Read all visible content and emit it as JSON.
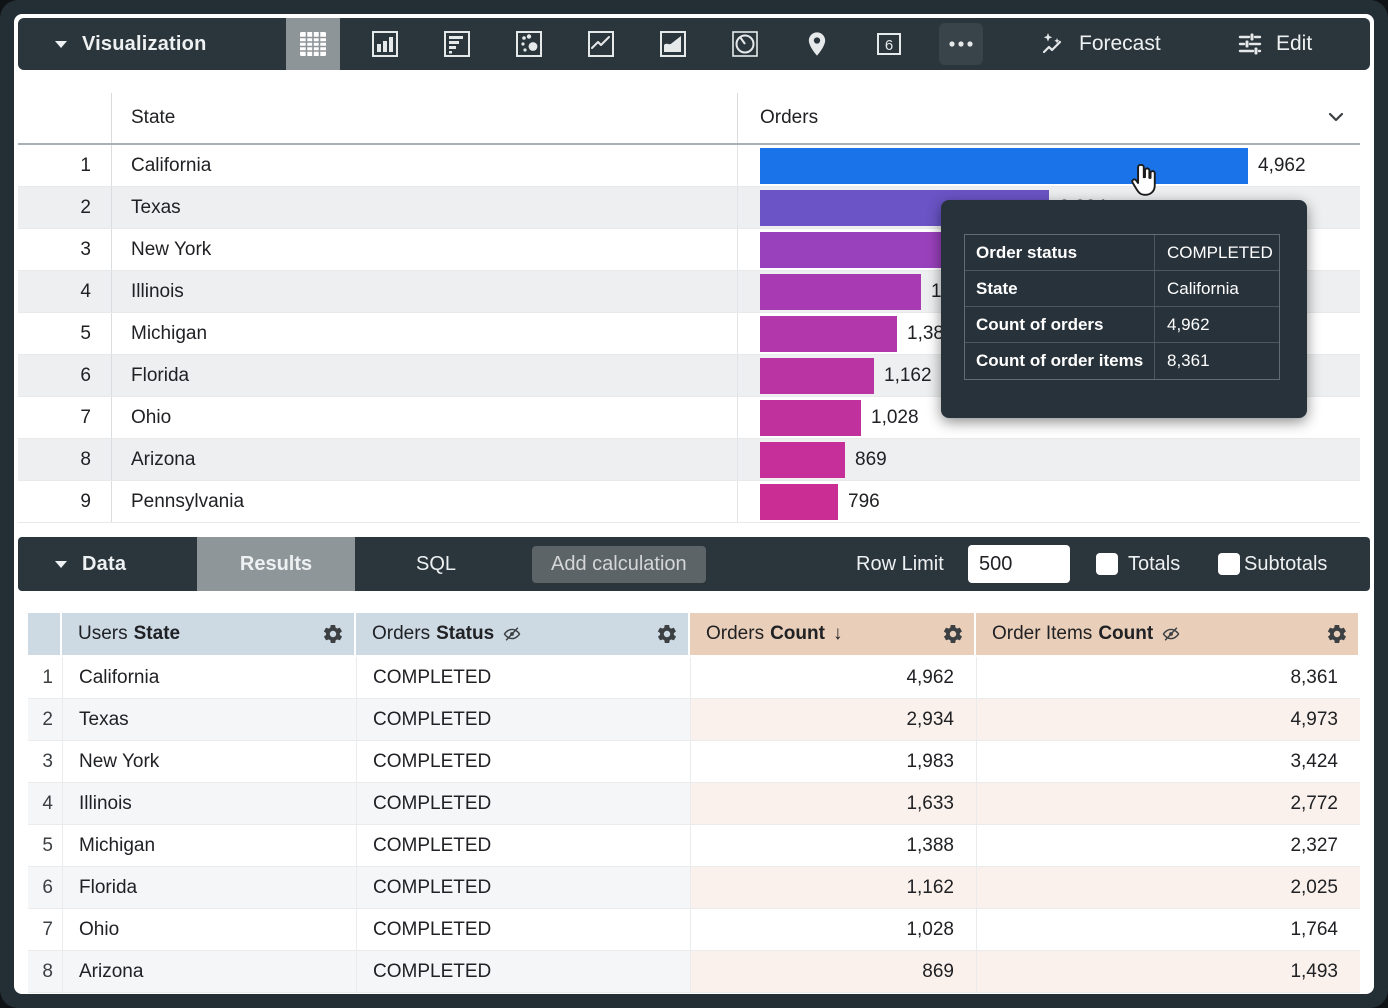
{
  "viz_toolbar": {
    "section_label": "Visualization",
    "selected_chart_type": "table",
    "chart_type_icons": [
      "table",
      "column-chart",
      "bar-chart",
      "scatter-chart",
      "line-chart",
      "area-chart",
      "pie-chart",
      "map",
      "single-value",
      "more"
    ],
    "single_value_glyph": "6",
    "forecast_label": "Forecast",
    "edit_label": "Edit"
  },
  "viz_table": {
    "state_header": "State",
    "orders_header": "Orders",
    "max_value": 4962,
    "rows": [
      {
        "n": "1",
        "state": "California",
        "value": 4962,
        "value_label": "4,962",
        "color": "#1a73e8"
      },
      {
        "n": "2",
        "state": "Texas",
        "value": 2934,
        "value_label": "2,934",
        "color": "#6a54c6"
      },
      {
        "n": "3",
        "state": "New York",
        "value": 1983,
        "value_label": "1,983",
        "color": "#9941bc"
      },
      {
        "n": "4",
        "state": "Illinois",
        "value": 1633,
        "value_label": "1,633",
        "color": "#a83bb4"
      },
      {
        "n": "5",
        "state": "Michigan",
        "value": 1388,
        "value_label": "1,388",
        "color": "#b237ab"
      },
      {
        "n": "6",
        "state": "Florida",
        "value": 1162,
        "value_label": "1,162",
        "color": "#ba34a4"
      },
      {
        "n": "7",
        "state": "Ohio",
        "value": 1028,
        "value_label": "1,028",
        "color": "#c1319e"
      },
      {
        "n": "8",
        "state": "Arizona",
        "value": 869,
        "value_label": "869",
        "color": "#c62f99"
      },
      {
        "n": "9",
        "state": "Pennsylvania",
        "value": 796,
        "value_label": "796",
        "color": "#ca2d94"
      }
    ]
  },
  "tooltip": {
    "rows": [
      {
        "label": "Order status",
        "value": "COMPLETED"
      },
      {
        "label": "State",
        "value": "California"
      },
      {
        "label": "Count of orders",
        "value": "4,962"
      },
      {
        "label": "Count of order items",
        "value": "8,361"
      }
    ]
  },
  "data_bar": {
    "section_label": "Data",
    "tabs": [
      {
        "label": "Results",
        "active": true
      },
      {
        "label": "SQL",
        "active": false
      }
    ],
    "add_calculation_label": "Add calculation",
    "row_limit_label": "Row Limit",
    "row_limit_value": "500",
    "totals_label": "Totals",
    "subtotals_label": "Subtotals",
    "totals_checked": false,
    "subtotals_checked": false
  },
  "data_table": {
    "columns": [
      {
        "prefix": "Users",
        "field": "State",
        "type": "dimension",
        "icons": [
          "gear-icon"
        ]
      },
      {
        "prefix": "Orders",
        "field": "Status",
        "type": "dimension",
        "icons": [
          "eye-off-icon",
          "gear-icon"
        ]
      },
      {
        "prefix": "Orders",
        "field": "Count",
        "type": "measure",
        "icons": [
          "sort-desc-icon",
          "gear-icon"
        ],
        "sort": "desc",
        "sort_glyph": "↓"
      },
      {
        "prefix": "Order Items",
        "field": "Count",
        "type": "measure",
        "icons": [
          "eye-off-icon",
          "gear-icon"
        ]
      }
    ],
    "rows": [
      {
        "n": "1",
        "state": "California",
        "status": "COMPLETED",
        "orders_count": "4,962",
        "order_items_count": "8,361"
      },
      {
        "n": "2",
        "state": "Texas",
        "status": "COMPLETED",
        "orders_count": "2,934",
        "order_items_count": "4,973"
      },
      {
        "n": "3",
        "state": "New York",
        "status": "COMPLETED",
        "orders_count": "1,983",
        "order_items_count": "3,424"
      },
      {
        "n": "4",
        "state": "Illinois",
        "status": "COMPLETED",
        "orders_count": "1,633",
        "order_items_count": "2,772"
      },
      {
        "n": "5",
        "state": "Michigan",
        "status": "COMPLETED",
        "orders_count": "1,388",
        "order_items_count": "2,327"
      },
      {
        "n": "6",
        "state": "Florida",
        "status": "COMPLETED",
        "orders_count": "1,162",
        "order_items_count": "2,025"
      },
      {
        "n": "7",
        "state": "Ohio",
        "status": "COMPLETED",
        "orders_count": "1,028",
        "order_items_count": "1,764"
      },
      {
        "n": "8",
        "state": "Arizona",
        "status": "COMPLETED",
        "orders_count": "869",
        "order_items_count": "1,493"
      }
    ]
  },
  "chart_data": {
    "type": "bar",
    "orientation": "horizontal",
    "categories": [
      "California",
      "Texas",
      "New York",
      "Illinois",
      "Michigan",
      "Florida",
      "Ohio",
      "Arizona",
      "Pennsylvania"
    ],
    "values": [
      4962,
      2934,
      1983,
      1633,
      1388,
      1162,
      1028,
      869,
      796
    ],
    "series_name": "Orders",
    "value_labels": [
      "4,962",
      "2,934",
      "1,983",
      "1,633",
      "1,388",
      "1,162",
      "1,028",
      "869",
      "796"
    ],
    "bar_colors": [
      "#1a73e8",
      "#6a54c6",
      "#9941bc",
      "#a83bb4",
      "#b237ab",
      "#ba34a4",
      "#c1319e",
      "#c62f99",
      "#ca2d94"
    ],
    "xlim": [
      0,
      4962
    ]
  },
  "colors": {
    "toolbar_bg": "#2b353c",
    "selected_tab_bg": "#8f969a",
    "dimension_header_bg": "#cdd9e3",
    "measure_header_bg": "#e9ceb9",
    "measure_stripe_bg": "#faf1ec",
    "dimension_stripe_bg": "#f4f6f7",
    "tooltip_bg": "#28323a"
  }
}
